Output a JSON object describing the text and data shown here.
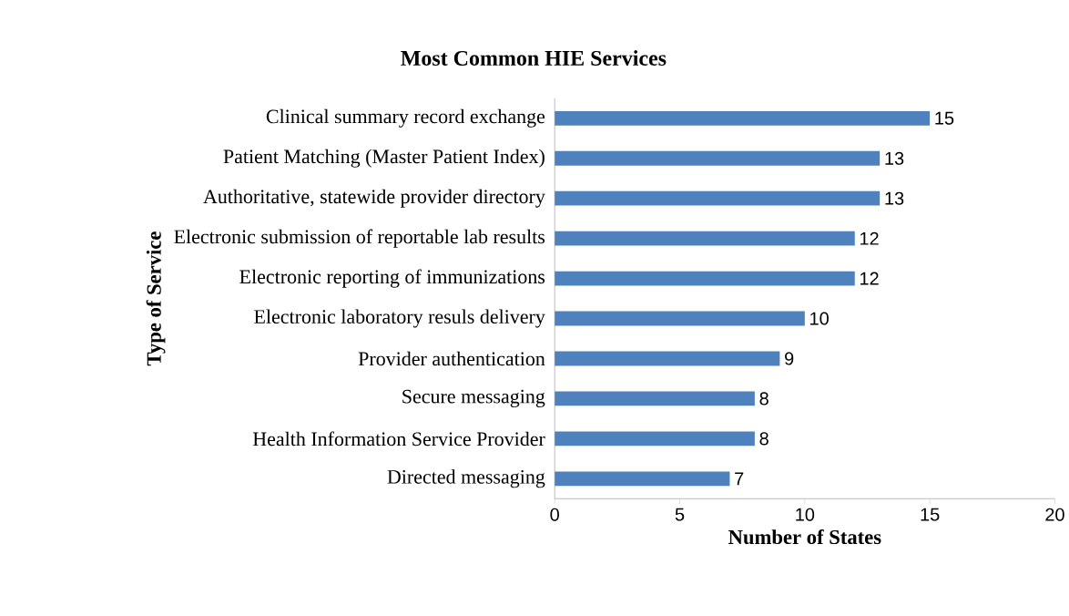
{
  "chart_data": {
    "type": "bar",
    "orientation": "horizontal",
    "title": "Most Common HIE Services",
    "xlabel": "Number of States",
    "ylabel": "Type of Service",
    "categories": [
      "Clinical summary record exchange",
      "Patient Matching (Master Patient Index)",
      "Authoritative, statewide provider directory",
      "Electronic submission of reportable lab results",
      "Electronic reporting of immunizations",
      "Electronic laboratory resuls delivery",
      "Provider authentication",
      "Secure messaging",
      "Health Information Service Provider",
      "Directed messaging"
    ],
    "values": [
      15,
      13,
      13,
      12,
      12,
      10,
      9,
      8,
      8,
      7
    ],
    "color": "#4f81bd",
    "xlim": [
      0,
      20
    ],
    "xticks": [
      0,
      5,
      10,
      15,
      20
    ],
    "data_labels": true
  }
}
